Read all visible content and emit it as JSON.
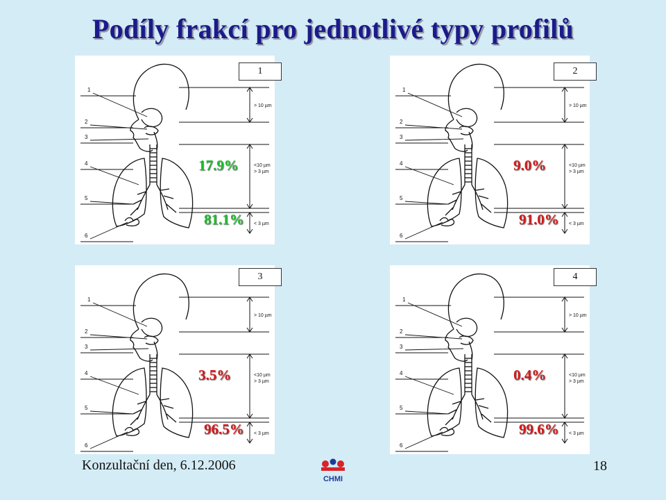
{
  "title": "Podíly frakcí pro jednotlivé typy profilů",
  "panels": [
    {
      "number": "1",
      "upper": "17.9%",
      "lower": "81.1%"
    },
    {
      "number": "2",
      "upper": "9.0%",
      "lower": "91.0%"
    },
    {
      "number": "3",
      "upper": "3.5%",
      "lower": "96.5%"
    },
    {
      "number": "4",
      "upper": "0.4%",
      "lower": "99.6%"
    }
  ],
  "diagram_labels": {
    "markers": [
      "1",
      "2",
      "3",
      "4",
      "5",
      "6"
    ],
    "size_top": "> 10 µm",
    "size_mid_1": "<10 µm",
    "size_mid_2": "> 3 µm",
    "size_bottom": "< 3 µm"
  },
  "footer": {
    "left": "Konzultační den, 6.12.2006",
    "page": "18",
    "logo_text": "CHMI"
  },
  "colors": {
    "background": "#d4ecf6",
    "title": "#1b1b8a",
    "upper_pct": "#1cbd2c",
    "lower_pct": "#d21919",
    "logo_red": "#d8232a",
    "logo_blue": "#1f3b9a"
  }
}
